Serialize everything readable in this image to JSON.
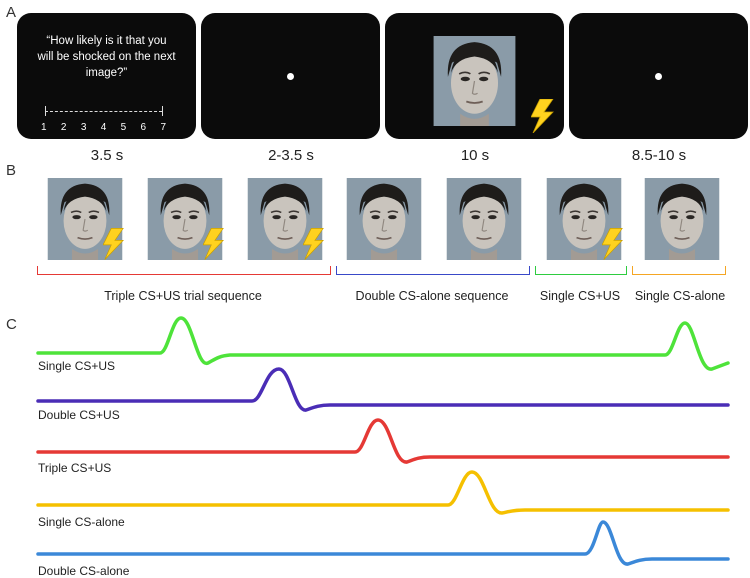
{
  "panels": {
    "a": "A",
    "b": "B",
    "c": "C"
  },
  "rating_screen": {
    "question": "“How likely is it that you\nwill be shocked on the next\nimage?”",
    "scale": [
      "1",
      "2",
      "3",
      "4",
      "5",
      "6",
      "7"
    ]
  },
  "durations": [
    "3.5 s",
    "2-3.5 s",
    "10 s",
    "8.5-10 s"
  ],
  "sequences": [
    {
      "label": "Triple CS+US trial sequence",
      "color": "#e53935"
    },
    {
      "label": "Double CS-alone sequence",
      "color": "#3949c8"
    },
    {
      "label": "Single CS+US",
      "color": "#2ecc40"
    },
    {
      "label": "Single CS-alone",
      "color": "#f5a623"
    }
  ],
  "face_shock": [
    true,
    true,
    true,
    false,
    false,
    true,
    false
  ],
  "traces": [
    {
      "label": "Single CS+US",
      "color": "#4ee33a"
    },
    {
      "label": "Double CS+US",
      "color": "#4a2db6"
    },
    {
      "label": "Triple CS+US",
      "color": "#e53935"
    },
    {
      "label": "Single CS-alone",
      "color": "#f5c000"
    },
    {
      "label": "Double CS-alone",
      "color": "#3b88d8"
    }
  ],
  "icons": {
    "shock": "lightning-bolt-icon",
    "fixation": "fixation-dot-icon"
  }
}
